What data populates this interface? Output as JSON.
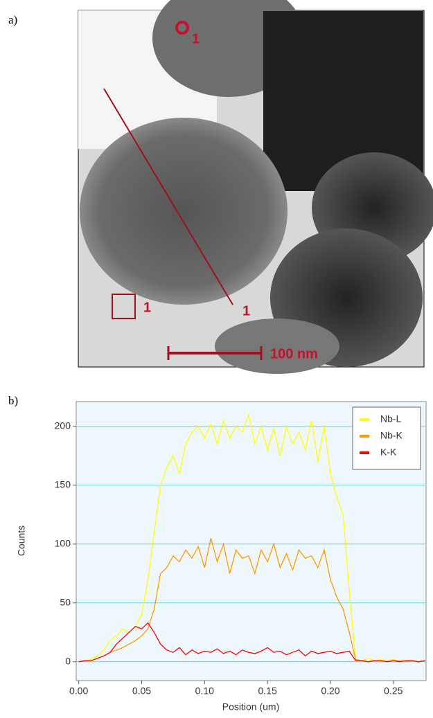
{
  "panels": {
    "a": "a)",
    "b": "b)"
  },
  "image": {
    "point_marker": "1",
    "area_marker": "1",
    "line_marker": "1",
    "scale_bar": "100 nm"
  },
  "chart_data": {
    "type": "line",
    "x_label": "Position (um)",
    "y_label": "Counts",
    "x": [
      0,
      0.005,
      0.01,
      0.015,
      0.02,
      0.025,
      0.03,
      0.035,
      0.04,
      0.045,
      0.05,
      0.055,
      0.06,
      0.065,
      0.07,
      0.075,
      0.08,
      0.085,
      0.09,
      0.095,
      0.1,
      0.105,
      0.11,
      0.115,
      0.12,
      0.125,
      0.13,
      0.135,
      0.14,
      0.145,
      0.15,
      0.155,
      0.16,
      0.165,
      0.17,
      0.175,
      0.18,
      0.185,
      0.19,
      0.195,
      0.2,
      0.205,
      0.21,
      0.215,
      0.22,
      0.225,
      0.23,
      0.235,
      0.24,
      0.245,
      0.25,
      0.255,
      0.26,
      0.265,
      0.27,
      0.275
    ],
    "series": [
      {
        "name": "Nb-L",
        "color": "#ffff00",
        "values": [
          0,
          1,
          2,
          5,
          10,
          18,
          22,
          28,
          25,
          30,
          40,
          70,
          110,
          150,
          165,
          175,
          160,
          185,
          195,
          200,
          190,
          202,
          185,
          205,
          190,
          200,
          195,
          210,
          185,
          200,
          180,
          198,
          175,
          200,
          185,
          195,
          180,
          205,
          170,
          200,
          160,
          140,
          125,
          60,
          2,
          1,
          3,
          1,
          2,
          1,
          2,
          0,
          1,
          1,
          0,
          1
        ]
      },
      {
        "name": "Nb-K",
        "color": "#ff9900",
        "values": [
          0,
          1,
          1,
          3,
          5,
          8,
          10,
          12,
          15,
          18,
          22,
          28,
          45,
          75,
          80,
          90,
          85,
          95,
          88,
          98,
          80,
          105,
          85,
          100,
          75,
          95,
          88,
          90,
          75,
          95,
          85,
          100,
          80,
          92,
          78,
          95,
          88,
          90,
          80,
          95,
          70,
          55,
          45,
          25,
          2,
          1,
          0,
          1,
          1,
          0,
          1,
          1,
          0,
          1,
          0,
          1
        ]
      },
      {
        "name": "K-K",
        "color": "#ff0000",
        "values": [
          0,
          1,
          1,
          3,
          5,
          8,
          15,
          20,
          25,
          30,
          28,
          33,
          25,
          15,
          10,
          8,
          12,
          6,
          10,
          7,
          9,
          8,
          11,
          7,
          9,
          6,
          10,
          8,
          7,
          9,
          12,
          8,
          9,
          6,
          8,
          10,
          5,
          9,
          7,
          8,
          9,
          7,
          8,
          9,
          1,
          1,
          0,
          1,
          1,
          0,
          1,
          0,
          1,
          1,
          0,
          1
        ]
      }
    ],
    "xlim": [
      -0.002,
      0.276
    ],
    "ylim": [
      -16,
      221
    ],
    "xticks": [
      {
        "value": 0,
        "label": "0.00"
      },
      {
        "value": 0.05,
        "label": "0.05"
      },
      {
        "value": 0.1,
        "label": "0.10"
      },
      {
        "value": 0.15,
        "label": "0.15"
      },
      {
        "value": 0.2,
        "label": "0.20"
      },
      {
        "value": 0.25,
        "label": "0.25"
      }
    ],
    "yticks": [
      0,
      50,
      100,
      150,
      200
    ],
    "grid": true,
    "legend": "top-right"
  }
}
